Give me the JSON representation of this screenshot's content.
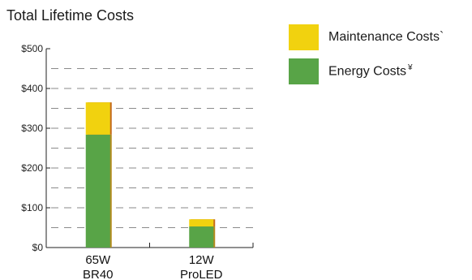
{
  "chart_data": {
    "type": "bar",
    "stacked": true,
    "title": "Total Lifetime Costs",
    "xlabel": "",
    "ylabel": "",
    "ylim": [
      0,
      500
    ],
    "y_ticks": [
      "$0",
      "$100",
      "$200",
      "$300",
      "$400",
      "$500"
    ],
    "categories": [
      {
        "line1": "65W",
        "line2": "BR40"
      },
      {
        "line1": "12W",
        "line2": "ProLED"
      }
    ],
    "series": [
      {
        "name": "Energy Costs",
        "mark": "¥",
        "color": "#58a447",
        "shadow": "#b38b1f",
        "values": [
          284,
          53
        ]
      },
      {
        "name": "Maintenance Costs",
        "mark": "`",
        "color": "#f1d20f",
        "shadow": "#c46a1c",
        "values": [
          81,
          18
        ]
      }
    ],
    "grid": "dashed, every $50",
    "legend_position": "top-right"
  },
  "legend": [
    {
      "label": "Maintenance Costs",
      "mark": "`",
      "color": "#f1d20f"
    },
    {
      "label": "Energy Costs",
      "mark": "¥",
      "color": "#58a447"
    }
  ]
}
